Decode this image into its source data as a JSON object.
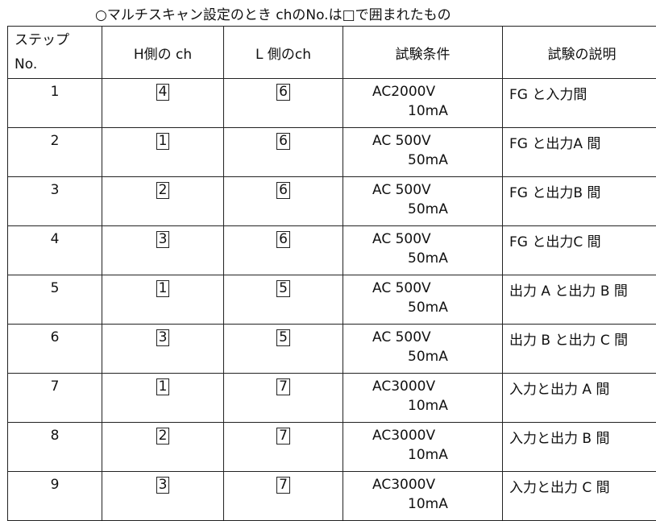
{
  "title": "○マルチスキャン設定のとき chのNo.は□で囲まれたもの",
  "headers": {
    "step_line1": "ステップ",
    "step_line2": "No.",
    "h_ch": "H側の ch",
    "l_ch": "L 側のch",
    "condition": "試験条件",
    "description": "試験の説明"
  },
  "rows": [
    {
      "step": "1",
      "h": "4",
      "l": "6",
      "voltage": "AC2000V",
      "current": "10mA",
      "desc": "FG と入力間"
    },
    {
      "step": "2",
      "h": "1",
      "l": "6",
      "voltage": "AC 500V",
      "current": "50mA",
      "desc": "FG と出力A 間"
    },
    {
      "step": "3",
      "h": "2",
      "l": "6",
      "voltage": "AC 500V",
      "current": "50mA",
      "desc": "FG と出力B 間"
    },
    {
      "step": "4",
      "h": "3",
      "l": "6",
      "voltage": "AC 500V",
      "current": "50mA",
      "desc": "FG と出力C 間"
    },
    {
      "step": "5",
      "h": "1",
      "l": "5",
      "voltage": "AC 500V",
      "current": "50mA",
      "desc": "出力 A と出力 B 間"
    },
    {
      "step": "6",
      "h": "3",
      "l": "5",
      "voltage": "AC 500V",
      "current": "50mA",
      "desc": "出力 B と出力 C 間"
    },
    {
      "step": "7",
      "h": "1",
      "l": "7",
      "voltage": "AC3000V",
      "current": "10mA",
      "desc": "入力と出力 A 間"
    },
    {
      "step": "8",
      "h": "2",
      "l": "7",
      "voltage": "AC3000V",
      "current": "10mA",
      "desc": "入力と出力 B 間"
    },
    {
      "step": "9",
      "h": "3",
      "l": "7",
      "voltage": "AC3000V",
      "current": "10mA",
      "desc": "入力と出力 C 間"
    }
  ]
}
